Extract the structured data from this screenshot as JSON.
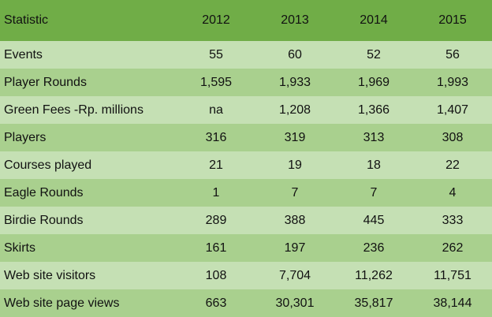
{
  "table": {
    "header": [
      "Statistic",
      "2012",
      "2013",
      "2014",
      "2015"
    ],
    "rows": [
      {
        "label": "Events",
        "values": [
          "55",
          "60",
          "52",
          "56"
        ]
      },
      {
        "label": "Player Rounds",
        "values": [
          "1,595",
          "1,933",
          "1,969",
          "1,993"
        ]
      },
      {
        "label": "Green Fees -Rp. millions",
        "values": [
          "na",
          "1,208",
          "1,366",
          "1,407"
        ]
      },
      {
        "label": "Players",
        "values": [
          "316",
          "319",
          "313",
          "308"
        ]
      },
      {
        "label": "Courses played",
        "values": [
          "21",
          "19",
          "18",
          "22"
        ]
      },
      {
        "label": "Eagle Rounds",
        "values": [
          "1",
          "7",
          "7",
          "4"
        ]
      },
      {
        "label": "Birdie Rounds",
        "values": [
          "289",
          "388",
          "445",
          "333"
        ]
      },
      {
        "label": "Skirts",
        "values": [
          "161",
          "197",
          "236",
          "262"
        ]
      },
      {
        "label": "Web site visitors",
        "values": [
          "108",
          "7,704",
          "11,262",
          "11,751"
        ]
      },
      {
        "label": "Web site page views",
        "values": [
          "663",
          "30,301",
          "35,817",
          "38,144"
        ]
      }
    ]
  },
  "colors": {
    "header_bg": "#70ad47",
    "row_light": "#c5e0b4",
    "row_dark": "#a9d08e"
  }
}
